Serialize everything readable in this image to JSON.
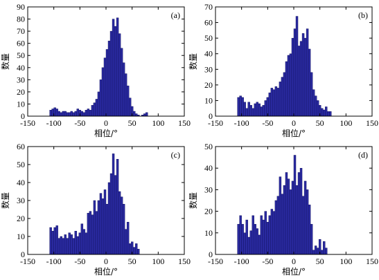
{
  "colors": {
    "bar": "#2a2aa0",
    "bar_edge": "#0a0a55",
    "axis": "#000000"
  },
  "chart_data": [
    {
      "type": "bar",
      "panel_label": "(a)",
      "xlabel": "相位/°",
      "ylabel": "数量",
      "xlim": [
        -150,
        150
      ],
      "ylim": [
        0,
        90
      ],
      "xticks": [
        -150,
        -100,
        -50,
        0,
        50,
        100,
        150
      ],
      "yticks": [
        0,
        10,
        20,
        30,
        40,
        50,
        60,
        70,
        80,
        90
      ],
      "bin_width": 4,
      "bins_start": -108,
      "values": [
        5,
        6,
        7,
        6,
        4,
        3,
        4,
        4,
        3,
        3,
        4,
        3,
        4,
        6,
        5,
        4,
        3,
        5,
        6,
        5,
        9,
        11,
        14,
        20,
        30,
        40,
        48,
        55,
        62,
        70,
        80,
        74,
        81,
        68,
        56,
        44,
        35,
        25,
        15,
        8,
        4,
        2,
        1,
        0,
        1,
        2,
        3
      ]
    },
    {
      "type": "bar",
      "panel_label": "(b)",
      "xlabel": "相位/°",
      "ylabel": "数量",
      "xlim": [
        -150,
        150
      ],
      "ylim": [
        0,
        70
      ],
      "xticks": [
        -150,
        -100,
        -50,
        0,
        50,
        100,
        150
      ],
      "yticks": [
        0,
        10,
        20,
        30,
        40,
        50,
        60,
        70
      ],
      "bin_width": 4,
      "bins_start": -108,
      "values": [
        12,
        13,
        12,
        9,
        5,
        9,
        7,
        5,
        8,
        9,
        8,
        6,
        7,
        10,
        12,
        15,
        18,
        17,
        19,
        18,
        22,
        25,
        28,
        35,
        39,
        40,
        50,
        56,
        64,
        45,
        48,
        53,
        50,
        56,
        43,
        28,
        17,
        13,
        10,
        7,
        5,
        4,
        6,
        3,
        3
      ]
    },
    {
      "type": "bar",
      "panel_label": "(c)",
      "xlabel": "相位/°",
      "ylabel": "数量",
      "xlim": [
        -150,
        150
      ],
      "ylim": [
        0,
        60
      ],
      "xticks": [
        -150,
        -100,
        -50,
        0,
        50,
        100,
        150
      ],
      "yticks": [
        0,
        10,
        20,
        30,
        40,
        50,
        60
      ],
      "bin_width": 4,
      "bins_start": -108,
      "values": [
        15,
        13,
        15,
        16,
        9,
        10,
        9,
        11,
        9,
        12,
        11,
        9,
        13,
        10,
        12,
        17,
        14,
        12,
        23,
        24,
        22,
        30,
        24,
        30,
        34,
        31,
        36,
        28,
        40,
        45,
        56,
        44,
        53,
        35,
        32,
        28,
        14,
        18,
        6,
        7,
        4,
        6,
        3
      ]
    },
    {
      "type": "bar",
      "panel_label": "(d)",
      "xlabel": "相位/°",
      "ylabel": "数量",
      "xlim": [
        -150,
        150
      ],
      "ylim": [
        0,
        50
      ],
      "xticks": [
        -150,
        -100,
        -50,
        0,
        50,
        100,
        150
      ],
      "yticks": [
        0,
        10,
        20,
        30,
        40,
        50
      ],
      "bin_width": 4,
      "bins_start": -108,
      "values": [
        14,
        18,
        14,
        10,
        16,
        8,
        11,
        18,
        14,
        12,
        9,
        18,
        16,
        20,
        15,
        18,
        21,
        20,
        25,
        27,
        36,
        28,
        32,
        38,
        35,
        30,
        34,
        46,
        32,
        38,
        40,
        27,
        34,
        30,
        23,
        14,
        2,
        4,
        3,
        7,
        2,
        6,
        3
      ]
    }
  ]
}
